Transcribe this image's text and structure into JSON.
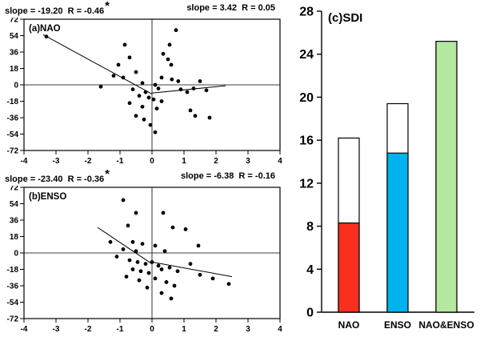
{
  "panels": {
    "a": {
      "label": "(a)NAO",
      "left_stat": "slope = -19.20  R = -0.46",
      "left_star": "*",
      "right_stat": "slope = 3.42  R = 0.05"
    },
    "b": {
      "label": "(b)ENSO",
      "left_stat": "slope = -23.40  R = -0.36",
      "left_star": "*",
      "right_stat": "slope = -6.38  R = -0.16"
    },
    "c": {
      "label": "(c)SDI"
    }
  },
  "chart_data": [
    {
      "type": "scatter",
      "title": "(a)NAO",
      "xlim": [
        -4,
        4
      ],
      "ylim": [
        -72,
        72
      ],
      "xticks": [
        -4,
        -3,
        -2,
        -1,
        0,
        1,
        2,
        3,
        4
      ],
      "yticks": [
        -72,
        -54,
        -36,
        -18,
        0,
        18,
        36,
        54,
        72
      ],
      "annotations": {
        "left": "slope = -19.20  R = -0.46*",
        "right": "slope = 3.42  R = 0.05"
      },
      "points": [
        [
          -3.3,
          53
        ],
        [
          -0.85,
          44
        ],
        [
          0.75,
          60
        ],
        [
          0.55,
          44
        ],
        [
          0.35,
          34
        ],
        [
          -0.7,
          30
        ],
        [
          0.5,
          28
        ],
        [
          0.6,
          22
        ],
        [
          -1.05,
          22
        ],
        [
          -0.5,
          14
        ],
        [
          -1.2,
          10
        ],
        [
          -0.9,
          8
        ],
        [
          0.3,
          8
        ],
        [
          0.62,
          6
        ],
        [
          0.82,
          4
        ],
        [
          1.5,
          4
        ],
        [
          -0.3,
          2
        ],
        [
          0.1,
          0
        ],
        [
          -1.6,
          -2
        ],
        [
          -0.6,
          -5
        ],
        [
          0.2,
          -4
        ],
        [
          0.9,
          -5
        ],
        [
          1.3,
          -4
        ],
        [
          1.7,
          -6
        ],
        [
          -0.2,
          -8
        ],
        [
          1.1,
          -8
        ],
        [
          -0.4,
          -12
        ],
        [
          -0.1,
          -14
        ],
        [
          0.05,
          -16
        ],
        [
          0.3,
          -18
        ],
        [
          -0.7,
          -20
        ],
        [
          -0.3,
          -24
        ],
        [
          0.15,
          -26
        ],
        [
          1.2,
          -28
        ],
        [
          -0.5,
          -34
        ],
        [
          1.35,
          -34
        ],
        [
          1.8,
          -36
        ],
        [
          -0.25,
          -38
        ],
        [
          -0.05,
          -44
        ],
        [
          0.1,
          -52
        ]
      ],
      "lines": [
        {
          "name": "negative-phase-fit",
          "slope": -19.2,
          "R": -0.46,
          "significant": true,
          "x1": -3.4,
          "y1": 55,
          "x2": 0,
          "y2": -10
        },
        {
          "name": "positive-phase-fit",
          "slope": 3.42,
          "R": 0.05,
          "significant": false,
          "x1": 0,
          "y1": -9,
          "x2": 2.3,
          "y2": -1
        }
      ]
    },
    {
      "type": "scatter",
      "title": "(b)ENSO",
      "xlim": [
        -4,
        4
      ],
      "ylim": [
        -72,
        72
      ],
      "xticks": [
        -4,
        -3,
        -2,
        -1,
        0,
        1,
        2,
        3,
        4
      ],
      "yticks": [
        -72,
        -54,
        -36,
        -18,
        0,
        18,
        36,
        54,
        72
      ],
      "annotations": {
        "left": "slope = -23.40  R = -0.36*",
        "right": "slope = -6.38  R = -0.16"
      },
      "points": [
        [
          -0.9,
          58
        ],
        [
          -0.5,
          44
        ],
        [
          0.35,
          44
        ],
        [
          -0.75,
          30
        ],
        [
          0.65,
          28
        ],
        [
          1.05,
          26
        ],
        [
          -1.3,
          12
        ],
        [
          -0.6,
          12
        ],
        [
          -0.3,
          10
        ],
        [
          0.1,
          8
        ],
        [
          1.45,
          8
        ],
        [
          -0.9,
          4
        ],
        [
          -0.5,
          2
        ],
        [
          0.4,
          2
        ],
        [
          -1.1,
          -4
        ],
        [
          -0.7,
          -8
        ],
        [
          -0.45,
          -10
        ],
        [
          -0.2,
          -12
        ],
        [
          0,
          -10
        ],
        [
          0.2,
          -14
        ],
        [
          1.2,
          -12
        ],
        [
          -0.6,
          -18
        ],
        [
          -0.35,
          -20
        ],
        [
          -0.1,
          -22
        ],
        [
          0.3,
          -18
        ],
        [
          0.55,
          -16
        ],
        [
          0.8,
          -20
        ],
        [
          -0.8,
          -26
        ],
        [
          -0.4,
          -30
        ],
        [
          0.1,
          -28
        ],
        [
          0.45,
          -32
        ],
        [
          0.7,
          -36
        ],
        [
          1.5,
          -24
        ],
        [
          1.9,
          -28
        ],
        [
          2.4,
          -34
        ],
        [
          -0.15,
          -38
        ],
        [
          0.3,
          -44
        ],
        [
          0.6,
          -50
        ]
      ],
      "lines": [
        {
          "name": "negative-phase-fit",
          "slope": -23.4,
          "R": -0.36,
          "significant": true,
          "x1": -1.7,
          "y1": 28,
          "x2": 0,
          "y2": -12
        },
        {
          "name": "positive-phase-fit",
          "slope": -6.38,
          "R": -0.16,
          "significant": false,
          "x1": 0,
          "y1": -10,
          "x2": 2.5,
          "y2": -26
        }
      ]
    },
    {
      "type": "bar",
      "title": "(c)SDI",
      "categories": [
        "NAO",
        "ENSO",
        "NAO&ENSO"
      ],
      "filled_values": [
        8.3,
        14.8,
        25.2
      ],
      "outline_values": [
        16.2,
        19.4,
        25.2
      ],
      "bar_colors": [
        "#f9301f",
        "#00b2ee",
        "#b4e79f"
      ],
      "outline_fill": "#ffffff",
      "ylim": [
        0,
        28
      ],
      "yticks": [
        0,
        4,
        8,
        12,
        16,
        20,
        24,
        28
      ]
    }
  ]
}
